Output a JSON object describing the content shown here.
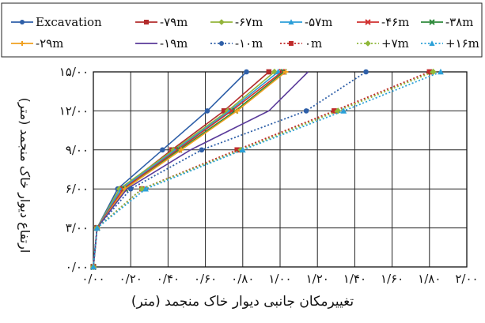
{
  "chart_data": {
    "type": "line",
    "xlabel": "تغییرمکان جانبی دیوار خاک منجمد (متر)",
    "ylabel": "ارتفاع دیوار خاک منجمد (متر)",
    "xlim": [
      0,
      2.0
    ],
    "ylim": [
      0,
      15
    ],
    "x_ticks": [
      0,
      0.2,
      0.4,
      0.6,
      0.8,
      1.0,
      1.2,
      1.4,
      1.6,
      1.8,
      2.0
    ],
    "y_ticks": [
      0,
      3,
      6,
      9,
      12,
      15
    ],
    "x_tick_labels": [
      "۰/۰۰",
      "۰/۲۰",
      "۰/۴۰",
      "۰/۶۰",
      "۰/۸۰",
      "۱/۰۰",
      "۱/۲۰",
      "۱/۴۰",
      "۱/۶۰",
      "۱/۸۰",
      "۲/۰۰"
    ],
    "y_tick_labels": [
      "۰/۰۰",
      "۳/۰۰",
      "۶/۰۰",
      "۹/۰۰",
      "۱۲/۰۰",
      "۱۵/۰۰"
    ],
    "grid": true,
    "legend_position": "top",
    "series": [
      {
        "name": "Excavation",
        "color": "#2e5fa8",
        "dash": "solid",
        "marker": "circle",
        "x": [
          0.0,
          0.02,
          0.13,
          0.37,
          0.61,
          0.82
        ],
        "y": [
          0,
          3,
          6,
          9,
          12,
          15
        ]
      },
      {
        "name": "-۷۹m",
        "color": "#b22b2b",
        "dash": "solid",
        "marker": "square",
        "x": [
          0.0,
          0.02,
          0.15,
          0.42,
          0.7,
          0.94
        ],
        "y": [
          0,
          3,
          6,
          9,
          12,
          15
        ]
      },
      {
        "name": "-۶۷m",
        "color": "#93b43a",
        "dash": "solid",
        "marker": "diamond",
        "x": [
          0.0,
          0.02,
          0.14,
          0.43,
          0.72,
          0.97
        ],
        "y": [
          0,
          3,
          6,
          9,
          12,
          15
        ]
      },
      {
        "name": "-۵۷m",
        "color": "#2b9ed8",
        "dash": "solid",
        "marker": "triangle",
        "x": [
          0.0,
          0.02,
          0.15,
          0.44,
          0.73,
          0.99
        ],
        "y": [
          0,
          3,
          6,
          9,
          12,
          15
        ]
      },
      {
        "name": "-۴۶m",
        "color": "#d0302f",
        "dash": "solid",
        "marker": "x",
        "x": [
          0.0,
          0.02,
          0.16,
          0.45,
          0.74,
          1.01
        ],
        "y": [
          0,
          3,
          6,
          9,
          12,
          15
        ]
      },
      {
        "name": "-۳۸m",
        "color": "#2e8a3c",
        "dash": "solid",
        "marker": "x",
        "x": [
          0.0,
          0.02,
          0.17,
          0.46,
          0.76,
          1.02
        ],
        "y": [
          0,
          3,
          6,
          9,
          12,
          15
        ]
      },
      {
        "name": "-۲۹m",
        "color": "#f0a020",
        "dash": "solid",
        "marker": "plus",
        "x": [
          0.0,
          0.02,
          0.17,
          0.47,
          0.77,
          1.03
        ],
        "y": [
          0,
          3,
          6,
          9,
          12,
          15
        ]
      },
      {
        "name": "-۱۹m",
        "color": "#5a3a9a",
        "dash": "solid",
        "marker": "none",
        "x": [
          0.0,
          0.02,
          0.18,
          0.52,
          0.94,
          1.15
        ],
        "y": [
          0,
          3,
          6,
          9,
          12,
          15
        ]
      },
      {
        "name": "-۱۰m",
        "color": "#2e5fa8",
        "dash": "dotted",
        "marker": "circle",
        "x": [
          0.0,
          0.02,
          0.2,
          0.58,
          1.14,
          1.46
        ],
        "y": [
          0,
          3,
          6,
          9,
          12,
          15
        ]
      },
      {
        "name": "۰m",
        "color": "#c02a2a",
        "dash": "dotted",
        "marker": "square",
        "x": [
          0.0,
          0.02,
          0.26,
          0.77,
          1.29,
          1.8
        ],
        "y": [
          0,
          3,
          6,
          9,
          12,
          15
        ]
      },
      {
        "name": "+۷m",
        "color": "#8fb83a",
        "dash": "dotted",
        "marker": "diamond",
        "x": [
          0.0,
          0.02,
          0.26,
          0.79,
          1.31,
          1.82
        ],
        "y": [
          0,
          3,
          6,
          9,
          12,
          15
        ]
      },
      {
        "name": "+۱۶m",
        "color": "#2aa0d8",
        "dash": "dotted",
        "marker": "triangle",
        "x": [
          0.0,
          0.02,
          0.28,
          0.8,
          1.34,
          1.86
        ],
        "y": [
          0,
          3,
          6,
          9,
          12,
          15
        ]
      }
    ]
  }
}
